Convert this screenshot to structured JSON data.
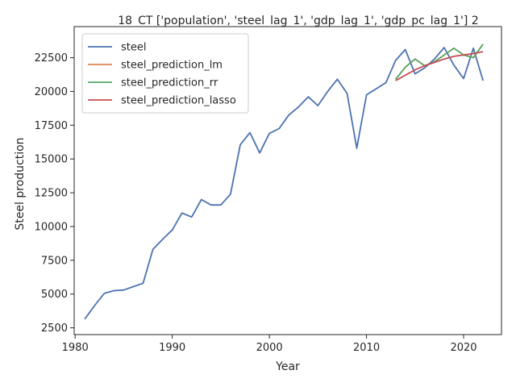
{
  "chart_data": {
    "type": "line",
    "title": "18_CT ['population', 'steel_lag_1', 'gdp_lag_1', 'gdp_pc_lag_1'] 2",
    "xlabel": "Year",
    "ylabel": "Steel production",
    "xlim": [
      1979.9,
      2023.9
    ],
    "ylim": [
      2000,
      24800
    ],
    "xticks": [
      1980,
      1990,
      2000,
      2010,
      2020
    ],
    "yticks": [
      2500,
      5000,
      7500,
      10000,
      12500,
      15000,
      17500,
      20000,
      22500
    ],
    "grid": false,
    "legend_position": "top-left",
    "series": [
      {
        "name": "steel",
        "color": "#4c72b0",
        "x": [
          1981,
          1982,
          1983,
          1984,
          1985,
          1986,
          1987,
          1988,
          1989,
          1990,
          1991,
          1992,
          1993,
          1994,
          1995,
          1996,
          1997,
          1998,
          1999,
          2000,
          2001,
          2002,
          2003,
          2004,
          2005,
          2006,
          2007,
          2008,
          2009,
          2010,
          2011,
          2012,
          2013,
          2014,
          2015,
          2016,
          2017,
          2018,
          2019,
          2020,
          2021,
          2022
        ],
        "values": [
          3150,
          4150,
          5050,
          5250,
          5300,
          5550,
          5800,
          8300,
          9050,
          9750,
          11000,
          10700,
          12000,
          11600,
          11600,
          12400,
          16050,
          16950,
          15450,
          16900,
          17250,
          18250,
          18850,
          19600,
          18950,
          20000,
          20900,
          19850,
          15800,
          19750,
          20200,
          20650,
          22300,
          23100,
          21300,
          21750,
          22400,
          23250,
          21950,
          20950,
          23200,
          20800
        ]
      },
      {
        "name": "steel_prediction_lm",
        "color": "#dd8452",
        "x": [
          2013,
          2014,
          2015,
          2016,
          2017,
          2018,
          2019,
          2020,
          2021,
          2022
        ],
        "values": [
          20900,
          21800,
          22400,
          21900,
          22200,
          22700,
          23200,
          22700,
          22500,
          23500
        ]
      },
      {
        "name": "steel_prediction_rr",
        "color": "#55a868",
        "x": [
          2013,
          2014,
          2015,
          2016,
          2017,
          2018,
          2019,
          2020,
          2021,
          2022
        ],
        "values": [
          20900,
          21800,
          22400,
          21900,
          22200,
          22700,
          23200,
          22700,
          22500,
          23500
        ]
      },
      {
        "name": "steel_prediction_lasso",
        "color": "#c44e52",
        "x": [
          2013,
          2014,
          2015,
          2016,
          2017,
          2018,
          2019,
          2020,
          2021,
          2022
        ],
        "values": [
          20800,
          21200,
          21600,
          21900,
          22150,
          22400,
          22600,
          22700,
          22800,
          22950
        ]
      }
    ]
  }
}
